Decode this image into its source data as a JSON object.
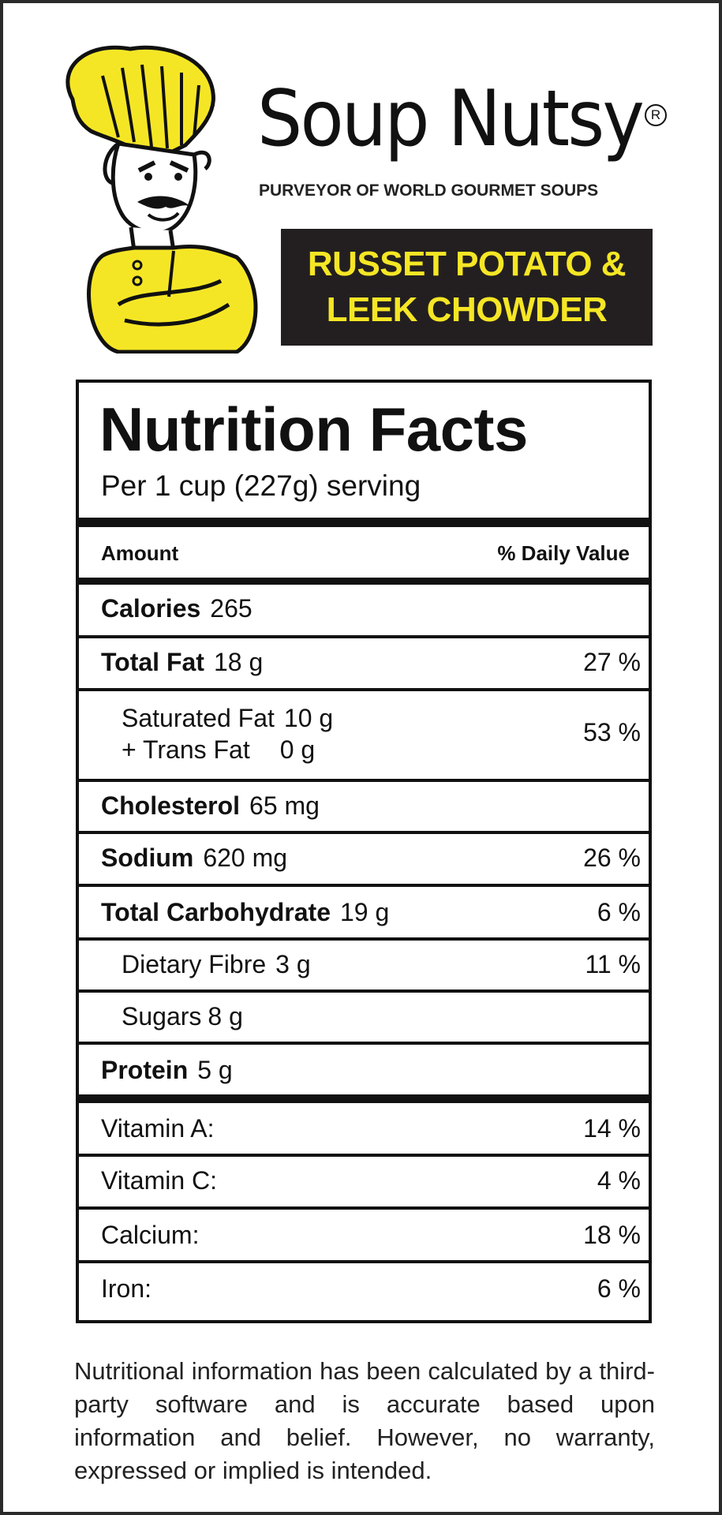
{
  "brand": {
    "name": "Soup Nutsy",
    "registered_mark": "R",
    "tagline": "PURVEYOR OF WORLD GOURMET SOUPS",
    "mascot": "chef-mascot"
  },
  "product": {
    "line1": "RUSSET POTATO &",
    "line2": "LEEK CHOWDER"
  },
  "nutrition": {
    "title": "Nutrition Facts",
    "serving": "Per 1 cup (227g) serving",
    "header_amount": "Amount",
    "header_dv": "% Daily Value",
    "calories": {
      "label": "Calories",
      "value": "265"
    },
    "total_fat": {
      "label": "Total Fat",
      "value": "18 g",
      "dv": "27 %"
    },
    "saturated_fat": {
      "label": "Saturated Fat",
      "value": "10 g",
      "dv": "53 %"
    },
    "trans_fat": {
      "label": "+ Trans Fat",
      "value": "0 g"
    },
    "cholesterol": {
      "label": "Cholesterol",
      "value": "65 mg"
    },
    "sodium": {
      "label": "Sodium",
      "value": "620 mg",
      "dv": "26 %"
    },
    "total_carb": {
      "label": "Total Carbohydrate",
      "value": "19 g",
      "dv": "6 %"
    },
    "dietary_fibre": {
      "label": "Dietary Fibre",
      "value": "3 g",
      "dv": "11 %"
    },
    "sugars": {
      "label": "Sugars",
      "value": "8 g"
    },
    "protein": {
      "label": "Protein",
      "value": "5 g"
    },
    "vitamin_a": {
      "label": "Vitamin A:",
      "dv": "14 %"
    },
    "vitamin_c": {
      "label": "Vitamin C:",
      "dv": "4 %"
    },
    "calcium": {
      "label": "Calcium:",
      "dv": "18 %"
    },
    "iron": {
      "label": "Iron:",
      "dv": "6 %"
    }
  },
  "footnote": "Nutritional information has been calculated by a third-party software and is accurate based upon information and belief.  However, no warranty, expressed or implied is intended.",
  "colors": {
    "accent_yellow": "#f5e625",
    "dark": "#231f20"
  }
}
